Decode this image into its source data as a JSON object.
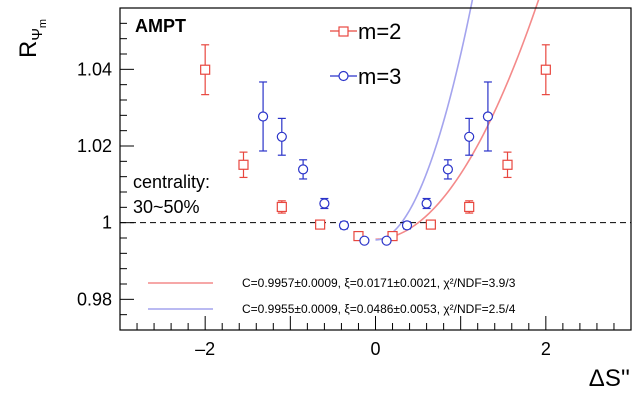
{
  "chart_data": {
    "type": "scatter",
    "title": "AMPT",
    "xlabel": "ΔS''",
    "ylabel_main": "R",
    "ylabel_sub": "Ψ",
    "ylabel_subsub": "m",
    "xlim": [
      -3.0,
      3.0
    ],
    "ylim": [
      0.972,
      1.056
    ],
    "xticks": [
      -2,
      0,
      2
    ],
    "xtick_labels": [
      "–2",
      "0",
      "2"
    ],
    "yticks": [
      0.98,
      1.0,
      1.02,
      1.04
    ],
    "ytick_labels": [
      "0.98",
      "1",
      "1.02",
      "1.04"
    ],
    "reference_line": 1.0,
    "legend_placement": "top-center",
    "annotation_lines": [
      "centrality:",
      "30~50%"
    ],
    "series": [
      {
        "name": "m=2",
        "marker": "square",
        "color": "#e8473f",
        "x": [
          -2.0,
          -1.55,
          -1.1,
          -0.65,
          -0.2,
          0.2,
          0.65,
          1.1,
          1.55,
          2.0
        ],
        "y": [
          1.0399,
          1.0151,
          1.0041,
          0.9995,
          0.9965,
          0.9965,
          0.9995,
          1.0041,
          1.0151,
          1.0399
        ],
        "err": [
          0.0065,
          0.0033,
          0.0016,
          0.001,
          0.0006,
          0.0006,
          0.001,
          0.0016,
          0.0033,
          0.0065
        ]
      },
      {
        "name": "m=3",
        "marker": "circle",
        "color": "#2a33c9",
        "x": [
          -1.32,
          -1.1,
          -0.85,
          -0.6,
          -0.37,
          -0.13,
          0.13,
          0.37,
          0.6,
          0.85,
          1.1,
          1.32
        ],
        "y": [
          1.0277,
          1.0224,
          1.0139,
          1.005,
          0.9993,
          0.9953,
          0.9953,
          0.9993,
          1.005,
          1.0139,
          1.0224,
          1.0277
        ],
        "err": [
          0.009,
          0.0048,
          0.0025,
          0.0013,
          0.0009,
          0.0007,
          0.0007,
          0.0009,
          0.0013,
          0.0025,
          0.0048,
          0.009
        ]
      }
    ],
    "fits": [
      {
        "series": "m=2",
        "color": "#f48a8a",
        "C": 0.9957,
        "xi": 0.0171,
        "x_range": [
          0.0,
          2.2
        ],
        "label": "C=0.9957±0.0009,  ξ=0.0171±0.0021,  χ²/NDF=3.9/3"
      },
      {
        "series": "m=3",
        "color": "#a4a4ee",
        "C": 0.9955,
        "xi": 0.0486,
        "x_range": [
          0.0,
          1.38
        ],
        "label": "C=0.9955±0.0009,  ξ=0.0486±0.0053,  χ²/NDF=2.5/4"
      }
    ]
  }
}
